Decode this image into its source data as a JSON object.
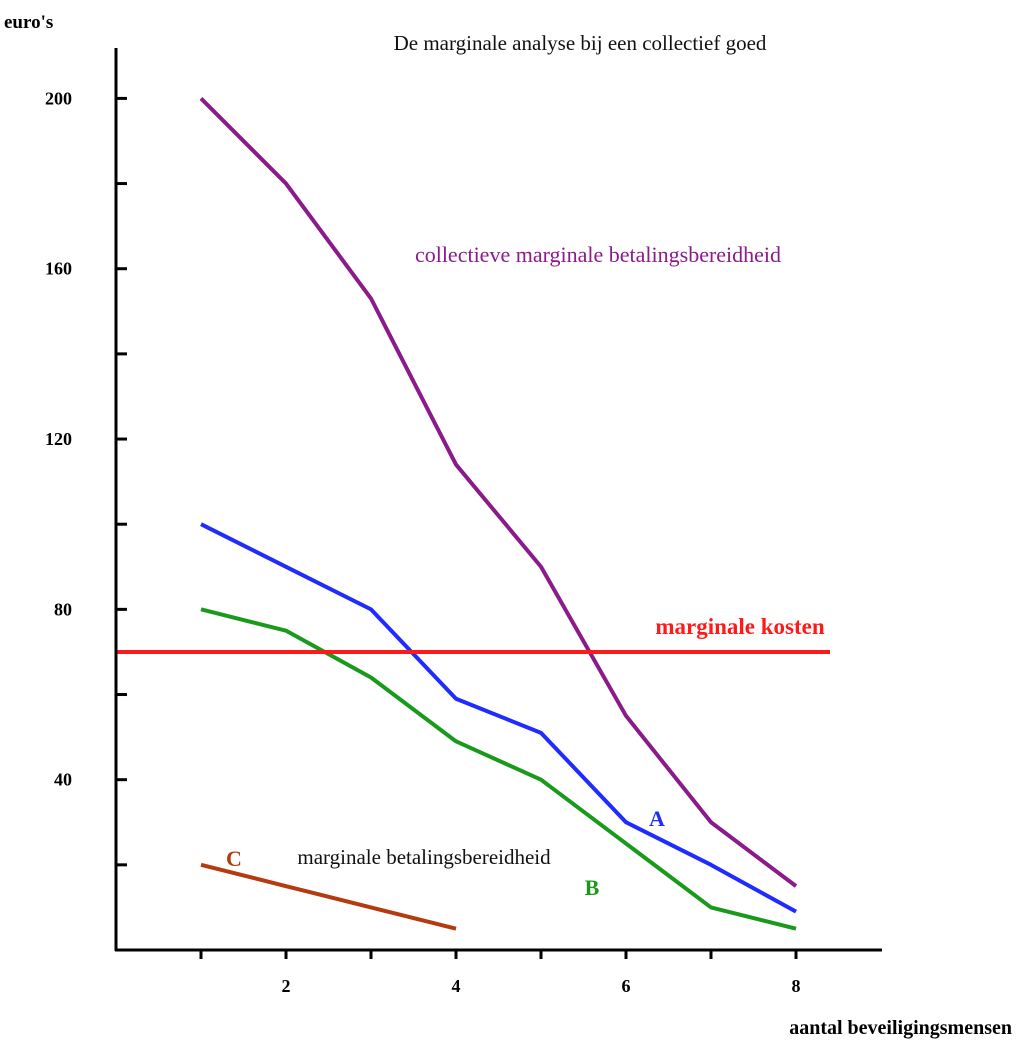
{
  "chart_data": {
    "type": "line",
    "title": "De marginale analyse bij een collectief goed",
    "ylabel": "euro's",
    "xlabel": "aantal beveiligingsmensen",
    "xlim": [
      0,
      9
    ],
    "ylim": [
      0,
      210
    ],
    "x_ticks": [
      1,
      2,
      3,
      4,
      5,
      6,
      7,
      8
    ],
    "x_tick_labels": [
      "",
      "2",
      "",
      "4",
      "",
      "6",
      "",
      "8"
    ],
    "y_ticks": [
      20,
      40,
      60,
      80,
      100,
      120,
      140,
      160,
      180,
      200
    ],
    "y_tick_labels": [
      "",
      "40",
      "",
      "80",
      "",
      "120",
      "",
      "160",
      "",
      "200"
    ],
    "grid": false,
    "annotation_text": "marginale betalingsbereidheid",
    "series": [
      {
        "name": "collectieve marginale betalingsbereidheid",
        "color": "#8b1a8b",
        "x": [
          1,
          2,
          3,
          4,
          5,
          6,
          7,
          8
        ],
        "y": [
          200,
          180,
          153,
          114,
          90,
          55,
          30,
          15
        ]
      },
      {
        "name": "A",
        "color": "#1f2bff",
        "x": [
          1,
          2,
          3,
          4,
          5,
          6,
          7,
          8
        ],
        "y": [
          100,
          90,
          80,
          59,
          51,
          30,
          20,
          9
        ]
      },
      {
        "name": "B",
        "color": "#1a9a1a",
        "x": [
          1,
          2,
          3,
          4,
          5,
          6,
          7,
          8
        ],
        "y": [
          80,
          75,
          64,
          49,
          40,
          25,
          10,
          5
        ]
      },
      {
        "name": "C",
        "color": "#b53a0e",
        "x": [
          1,
          2,
          3,
          4
        ],
        "y": [
          20,
          15,
          10,
          5
        ]
      },
      {
        "name": "marginale kosten",
        "color": "#ff1a1a",
        "x": [
          0,
          8.4
        ],
        "y": [
          70,
          70
        ]
      }
    ]
  }
}
